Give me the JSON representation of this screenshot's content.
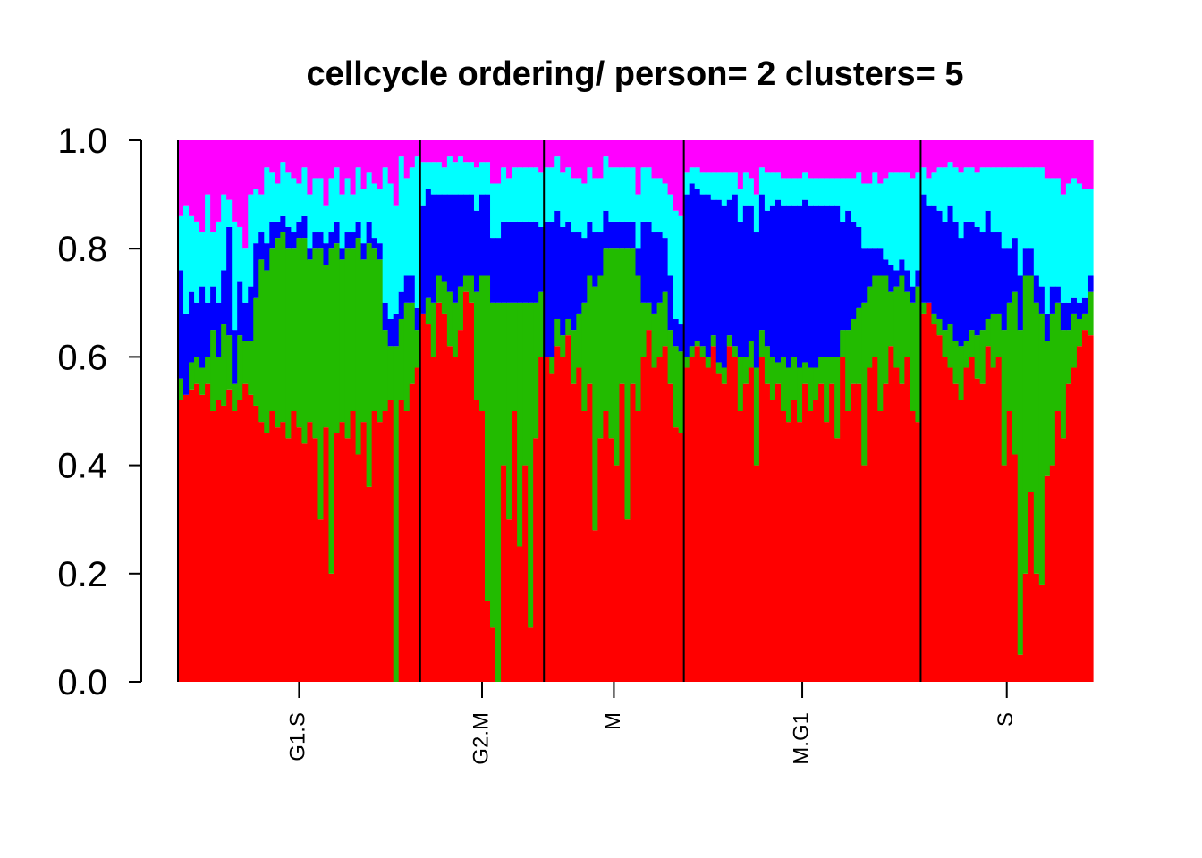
{
  "chart_data": {
    "type": "bar",
    "stacked": true,
    "title": "cellcycle ordering/ person= 2 clusters= 5",
    "xlabel": "",
    "ylabel": "",
    "ylim": [
      0,
      1
    ],
    "y_ticks": [
      "0.0",
      "0.2",
      "0.4",
      "0.6",
      "0.8",
      "1.0"
    ],
    "colors": [
      "#ff0000",
      "#22bb00",
      "#0000ff",
      "#00ffff",
      "#ff00ff"
    ],
    "groups": [
      {
        "label": "G1.S",
        "n": 45,
        "red": [
          0.52,
          0.53,
          0.54,
          0.55,
          0.53,
          0.55,
          0.5,
          0.52,
          0.51,
          0.54,
          0.5,
          0.52,
          0.55,
          0.53,
          0.51,
          0.48,
          0.46,
          0.5,
          0.47,
          0.48,
          0.45,
          0.5,
          0.47,
          0.44,
          0.48,
          0.45,
          0.3,
          0.47,
          0.2,
          0.46,
          0.48,
          0.45,
          0.5,
          0.42,
          0.48,
          0.36,
          0.5,
          0.48,
          0.5,
          0.52,
          0.0,
          0.52,
          0.5,
          0.55,
          0.58
        ],
        "green": [
          0.04,
          0.0,
          0.05,
          0.05,
          0.05,
          0.05,
          0.15,
          0.08,
          0.15,
          0.1,
          0.05,
          0.12,
          0.08,
          0.1,
          0.2,
          0.3,
          0.3,
          0.3,
          0.35,
          0.35,
          0.35,
          0.3,
          0.35,
          0.38,
          0.3,
          0.35,
          0.5,
          0.3,
          0.6,
          0.35,
          0.3,
          0.35,
          0.3,
          0.4,
          0.3,
          0.45,
          0.3,
          0.3,
          0.15,
          0.1,
          0.62,
          0.15,
          0.2,
          0.15,
          0.07
        ],
        "blue": [
          0.2,
          0.15,
          0.13,
          0.1,
          0.15,
          0.1,
          0.08,
          0.1,
          0.1,
          0.2,
          0.1,
          0.1,
          0.07,
          0.1,
          0.1,
          0.05,
          0.05,
          0.05,
          0.03,
          0.03,
          0.04,
          0.03,
          0.03,
          0.04,
          0.02,
          0.03,
          0.03,
          0.04,
          0.03,
          0.04,
          0.02,
          0.03,
          0.03,
          0.03,
          0.03,
          0.04,
          0.02,
          0.03,
          0.05,
          0.05,
          0.06,
          0.05,
          0.05,
          0.05,
          0.04
        ],
        "cyan": [
          0.1,
          0.2,
          0.14,
          0.15,
          0.1,
          0.2,
          0.1,
          0.15,
          0.14,
          0.05,
          0.2,
          0.1,
          0.1,
          0.17,
          0.1,
          0.07,
          0.14,
          0.09,
          0.07,
          0.1,
          0.1,
          0.1,
          0.07,
          0.09,
          0.1,
          0.1,
          0.1,
          0.07,
          0.1,
          0.1,
          0.1,
          0.1,
          0.07,
          0.1,
          0.1,
          0.09,
          0.1,
          0.1,
          0.25,
          0.25,
          0.2,
          0.25,
          0.18,
          0.2,
          0.28
        ]
      },
      {
        "label": "G2.M",
        "n": 23,
        "red": [
          0.68,
          0.66,
          0.6,
          0.7,
          0.68,
          0.62,
          0.6,
          0.65,
          0.72,
          0.7,
          0.52,
          0.5,
          0.15,
          0.1,
          0.0,
          0.4,
          0.3,
          0.5,
          0.25,
          0.4,
          0.1,
          0.45,
          0.6
        ],
        "green": [
          0.0,
          0.05,
          0.1,
          0.05,
          0.06,
          0.1,
          0.1,
          0.08,
          0.03,
          0.05,
          0.2,
          0.25,
          0.6,
          0.6,
          0.7,
          0.3,
          0.4,
          0.2,
          0.45,
          0.3,
          0.6,
          0.25,
          0.12
        ],
        "blue": [
          0.2,
          0.2,
          0.2,
          0.15,
          0.16,
          0.18,
          0.2,
          0.17,
          0.15,
          0.15,
          0.15,
          0.15,
          0.15,
          0.12,
          0.12,
          0.15,
          0.15,
          0.15,
          0.15,
          0.15,
          0.15,
          0.15,
          0.12
        ],
        "cyan": [
          0.08,
          0.05,
          0.06,
          0.06,
          0.05,
          0.07,
          0.06,
          0.07,
          0.06,
          0.06,
          0.08,
          0.06,
          0.06,
          0.1,
          0.1,
          0.1,
          0.08,
          0.1,
          0.1,
          0.1,
          0.1,
          0.1,
          0.1
        ]
      },
      {
        "label": "M",
        "n": 26,
        "red": [
          0.6,
          0.57,
          0.62,
          0.6,
          0.64,
          0.55,
          0.58,
          0.5,
          0.55,
          0.28,
          0.45,
          0.5,
          0.45,
          0.4,
          0.55,
          0.3,
          0.55,
          0.5,
          0.6,
          0.65,
          0.58,
          0.6,
          0.62,
          0.55,
          0.47,
          0.46
        ],
        "green": [
          0.0,
          0.03,
          0.05,
          0.04,
          0.03,
          0.1,
          0.1,
          0.2,
          0.2,
          0.45,
          0.3,
          0.3,
          0.35,
          0.4,
          0.25,
          0.5,
          0.25,
          0.25,
          0.1,
          0.05,
          0.1,
          0.1,
          0.1,
          0.1,
          0.15,
          0.15
        ],
        "blue": [
          0.25,
          0.25,
          0.2,
          0.2,
          0.18,
          0.18,
          0.15,
          0.12,
          0.1,
          0.1,
          0.08,
          0.07,
          0.05,
          0.05,
          0.05,
          0.05,
          0.05,
          0.05,
          0.15,
          0.15,
          0.15,
          0.13,
          0.1,
          0.1,
          0.05,
          0.05
        ],
        "cyan": [
          0.1,
          0.1,
          0.1,
          0.1,
          0.1,
          0.1,
          0.1,
          0.1,
          0.1,
          0.1,
          0.1,
          0.1,
          0.1,
          0.1,
          0.1,
          0.1,
          0.1,
          0.1,
          0.1,
          0.1,
          0.1,
          0.1,
          0.1,
          0.15,
          0.2,
          0.2
        ]
      },
      {
        "label": "M.G1",
        "n": 44,
        "red": [
          0.58,
          0.6,
          0.62,
          0.6,
          0.58,
          0.62,
          0.57,
          0.55,
          0.62,
          0.6,
          0.5,
          0.55,
          0.58,
          0.4,
          0.6,
          0.55,
          0.52,
          0.55,
          0.5,
          0.48,
          0.52,
          0.48,
          0.55,
          0.5,
          0.52,
          0.55,
          0.48,
          0.55,
          0.45,
          0.6,
          0.5,
          0.55,
          0.55,
          0.4,
          0.58,
          0.6,
          0.5,
          0.55,
          0.62,
          0.58,
          0.55,
          0.6,
          0.5,
          0.48
        ],
        "green": [
          0.02,
          0.02,
          0.01,
          0.02,
          0.02,
          0.02,
          0.02,
          0.03,
          0.02,
          0.02,
          0.1,
          0.05,
          0.05,
          0.18,
          0.05,
          0.07,
          0.08,
          0.04,
          0.1,
          0.1,
          0.08,
          0.1,
          0.04,
          0.08,
          0.06,
          0.05,
          0.12,
          0.05,
          0.15,
          0.05,
          0.15,
          0.12,
          0.14,
          0.3,
          0.15,
          0.15,
          0.25,
          0.2,
          0.1,
          0.15,
          0.2,
          0.12,
          0.2,
          0.25
        ],
        "blue": [
          0.3,
          0.3,
          0.28,
          0.28,
          0.3,
          0.25,
          0.3,
          0.3,
          0.25,
          0.28,
          0.25,
          0.28,
          0.25,
          0.25,
          0.25,
          0.25,
          0.28,
          0.3,
          0.28,
          0.3,
          0.28,
          0.3,
          0.3,
          0.3,
          0.3,
          0.28,
          0.28,
          0.28,
          0.28,
          0.2,
          0.22,
          0.18,
          0.15,
          0.1,
          0.07,
          0.05,
          0.05,
          0.03,
          0.05,
          0.03,
          0.03,
          0.04,
          0.03,
          0.03
        ],
        "cyan": [
          0.04,
          0.03,
          0.04,
          0.04,
          0.04,
          0.05,
          0.05,
          0.06,
          0.05,
          0.04,
          0.06,
          0.06,
          0.05,
          0.07,
          0.05,
          0.07,
          0.06,
          0.05,
          0.05,
          0.05,
          0.05,
          0.05,
          0.05,
          0.05,
          0.05,
          0.05,
          0.05,
          0.05,
          0.05,
          0.08,
          0.06,
          0.08,
          0.1,
          0.12,
          0.12,
          0.14,
          0.12,
          0.15,
          0.17,
          0.18,
          0.16,
          0.18,
          0.2,
          0.18
        ]
      },
      {
        "label": "S",
        "n": 32,
        "red": [
          0.68,
          0.7,
          0.66,
          0.64,
          0.6,
          0.58,
          0.55,
          0.52,
          0.58,
          0.6,
          0.56,
          0.55,
          0.62,
          0.58,
          0.6,
          0.4,
          0.5,
          0.42,
          0.05,
          0.2,
          0.35,
          0.2,
          0.18,
          0.38,
          0.4,
          0.5,
          0.45,
          0.55,
          0.58,
          0.62,
          0.65,
          0.64
        ],
        "green": [
          0.02,
          0.0,
          0.02,
          0.03,
          0.05,
          0.08,
          0.08,
          0.1,
          0.05,
          0.05,
          0.08,
          0.1,
          0.05,
          0.1,
          0.08,
          0.25,
          0.2,
          0.3,
          0.6,
          0.55,
          0.4,
          0.5,
          0.5,
          0.25,
          0.28,
          0.2,
          0.2,
          0.1,
          0.1,
          0.05,
          0.03,
          0.08
        ],
        "blue": [
          0.2,
          0.18,
          0.2,
          0.2,
          0.2,
          0.22,
          0.22,
          0.2,
          0.22,
          0.2,
          0.2,
          0.18,
          0.2,
          0.15,
          0.15,
          0.15,
          0.1,
          0.1,
          0.1,
          0.05,
          0.05,
          0.05,
          0.05,
          0.05,
          0.05,
          0.03,
          0.05,
          0.05,
          0.03,
          0.03,
          0.03,
          0.03
        ],
        "cyan": [
          0.05,
          0.05,
          0.06,
          0.08,
          0.1,
          0.08,
          0.1,
          0.12,
          0.1,
          0.1,
          0.1,
          0.12,
          0.08,
          0.12,
          0.12,
          0.15,
          0.15,
          0.13,
          0.2,
          0.15,
          0.15,
          0.2,
          0.22,
          0.25,
          0.2,
          0.2,
          0.2,
          0.22,
          0.22,
          0.22,
          0.2,
          0.16
        ]
      }
    ]
  }
}
